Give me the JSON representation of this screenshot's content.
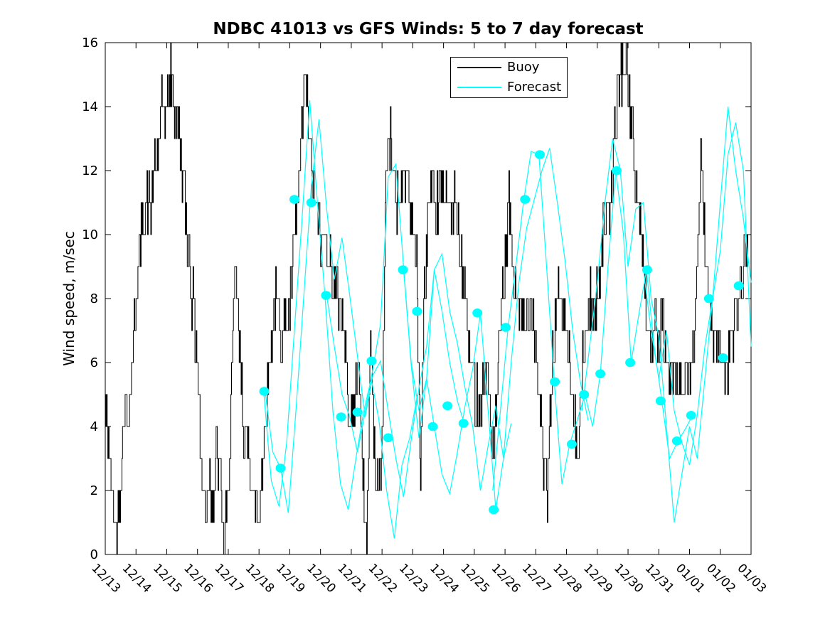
{
  "chart_data": {
    "type": "line",
    "title": "NDBC 41013 vs GFS Winds: 5 to 7 day forecast",
    "xlabel": "",
    "ylabel": "Wind speed, m/sec",
    "ylim": [
      0,
      16
    ],
    "xlim_days": [
      0,
      21
    ],
    "grid": false,
    "y_ticks": [
      0,
      2,
      4,
      6,
      8,
      10,
      12,
      14,
      16
    ],
    "x_tick_labels": [
      "12/13",
      "12/14",
      "12/15",
      "12/16",
      "12/17",
      "12/18",
      "12/19",
      "12/20",
      "12/21",
      "12/22",
      "12/23",
      "12/24",
      "12/25",
      "12/26",
      "12/27",
      "12/28",
      "12/29",
      "12/30",
      "12/31",
      "01/01",
      "01/02",
      "01/03"
    ],
    "colors": {
      "buoy": "#000000",
      "forecast": "#00ffff",
      "background": "#ffffff",
      "axis": "#000000"
    },
    "legend": {
      "position": "inside-top-center",
      "entries": [
        {
          "label": "Buoy",
          "color": "#000000"
        },
        {
          "label": "Forecast",
          "color": "#00ffff"
        }
      ]
    },
    "series": {
      "buoy": {
        "name": "Buoy",
        "color": "#000000",
        "x_start_day": 0,
        "x_step_days": 0.125,
        "note": "wind speed m/s at 3-hour spacing, day 0 = 12/13 00:00",
        "values": [
          4.5,
          3.5,
          1.5,
          0.5,
          2.5,
          5,
          4.5,
          6,
          8,
          9.5,
          10.5,
          11,
          11,
          12,
          13,
          14,
          14,
          15,
          14,
          13.5,
          12,
          10.5,
          9,
          7.5,
          6,
          2.5,
          1.5,
          2.5,
          1.5,
          3.5,
          2,
          0.3,
          2,
          6,
          9,
          6,
          4,
          3.5,
          2.5,
          1.5,
          1.5,
          3,
          5,
          6.5,
          8,
          7.5,
          7,
          7.5,
          8,
          9.5,
          11,
          13,
          15,
          13,
          11.5,
          10.5,
          9.5,
          10,
          9.5,
          8.5,
          8,
          8,
          7,
          5.5,
          4,
          5,
          6.5,
          2,
          0.5,
          7,
          3,
          2,
          3.5,
          12,
          13,
          12,
          11,
          11.5,
          12,
          11.5,
          10.5,
          9,
          2.5,
          8,
          11,
          11,
          10.5,
          12,
          11,
          11.5,
          10.5,
          11,
          10,
          8.5,
          7.5,
          6,
          5.5,
          4.5,
          5,
          6,
          4.5,
          3,
          5,
          7.5,
          9,
          11,
          9,
          8,
          7.5,
          7,
          7.5,
          8,
          6.5,
          5,
          3,
          2,
          5,
          7.5,
          8,
          7.5,
          7,
          5.5,
          4,
          3.5,
          5.5,
          7,
          8,
          7.5,
          8,
          9.5,
          11,
          10.5,
          12,
          14,
          15,
          15.5,
          15,
          13,
          11.5,
          10.5,
          9,
          7,
          6.5,
          7,
          6.5,
          7,
          6,
          5.5,
          6,
          5.5,
          5,
          5.5,
          5.5,
          6.5,
          8,
          13,
          10,
          8,
          7,
          6.5,
          6,
          5.5,
          6,
          7,
          7.5,
          8,
          9,
          10,
          10
        ]
      },
      "forecast_segments": [
        {
          "x_start_day": 5.15,
          "x_step_days": 0.25,
          "values": [
            5.1,
            2.3,
            1.5,
            3.5,
            7,
            10.5,
            14.2,
            11,
            8,
            4.5,
            2.2,
            1.4,
            3,
            4.45,
            5.5,
            4.2,
            2,
            0.5,
            2.8,
            3.65,
            5
          ]
        },
        {
          "x_start_day": 5.2,
          "x_step_days": 0.25,
          "values": [
            5.1,
            3.2,
            2.7,
            1.3,
            4.5,
            8,
            11.5,
            13.6,
            10.8,
            8.6,
            9.9,
            8.1,
            6.2,
            4.3,
            5.6,
            6.05,
            4.5,
            3,
            1.8,
            3.6,
            5.2,
            6.5,
            8.9,
            7.6,
            6,
            4.8,
            4
          ]
        },
        {
          "x_start_day": 7.2,
          "x_step_days": 0.25,
          "values": [
            8.1,
            6.5,
            5,
            4.3,
            3.2,
            4.45,
            5.8,
            7.2,
            11.8,
            12.2,
            9,
            5.9,
            3.65,
            5.5,
            8.9,
            9.4,
            7.6,
            6.6,
            5.2,
            4,
            2,
            3.4,
            4.65,
            3,
            4.1
          ]
        },
        {
          "x_start_day": 9.7,
          "x_step_days": 0.25,
          "values": [
            8.9,
            6,
            4.5,
            5.5,
            4,
            2.5,
            1.9,
            3.2,
            4.65,
            5.8,
            7.55,
            4.5,
            1.4,
            3,
            6,
            8.5,
            10.2,
            11.1,
            12,
            12.7,
            11,
            9.2,
            7,
            5.4,
            4.2
          ]
        },
        {
          "x_start_day": 12.6,
          "x_step_days": 0.25,
          "values": [
            2,
            4.5,
            7.1,
            9,
            11,
            12.6,
            12.5,
            9,
            5.4,
            2.2,
            3.45,
            4.2,
            5,
            4,
            5.65,
            9,
            12,
            10,
            6,
            7.5,
            8.9,
            6.5,
            4.8,
            3,
            3.5,
            3.9,
            4.35
          ]
        },
        {
          "x_start_day": 15.5,
          "x_step_days": 0.25,
          "values": [
            4.5,
            6.5,
            8.5,
            11,
            13,
            12,
            9,
            10.8,
            11,
            8,
            6.8,
            4,
            1,
            2.5,
            4,
            3,
            5.5,
            8,
            11,
            14,
            12,
            10.5,
            8.5
          ]
        },
        {
          "x_start_day": 17.5,
          "x_step_days": 0.25,
          "values": [
            8.9,
            7,
            5.5,
            7,
            4.5,
            3.5,
            2.8,
            4.35,
            6.5,
            8,
            9.5,
            12.5,
            13.5,
            12,
            6.5
          ]
        }
      ],
      "forecast_markers": {
        "name": "Forecast 12-hourly markers",
        "color": "#00ffff",
        "x_days": [
          5.17,
          5.7,
          6.15,
          6.7,
          7.18,
          7.67,
          8.2,
          8.66,
          9.2,
          9.68,
          10.14,
          10.65,
          11.13,
          11.65,
          12.1,
          12.63,
          13.02,
          13.65,
          14.13,
          14.62,
          15.17,
          15.57,
          16.1,
          16.63,
          17.07,
          17.62,
          18.06,
          18.59,
          19.05,
          19.63,
          20.09,
          20.6
        ],
        "values": [
          5.1,
          2.7,
          11.1,
          11.0,
          8.1,
          4.3,
          4.45,
          6.05,
          3.65,
          8.9,
          7.6,
          4.0,
          4.65,
          4.1,
          7.55,
          1.4,
          7.1,
          11.1,
          12.5,
          5.4,
          3.45,
          5.0,
          5.65,
          12.0,
          6.0,
          8.9,
          4.8,
          3.55,
          4.35,
          8.0,
          6.15,
          8.4
        ]
      }
    }
  }
}
